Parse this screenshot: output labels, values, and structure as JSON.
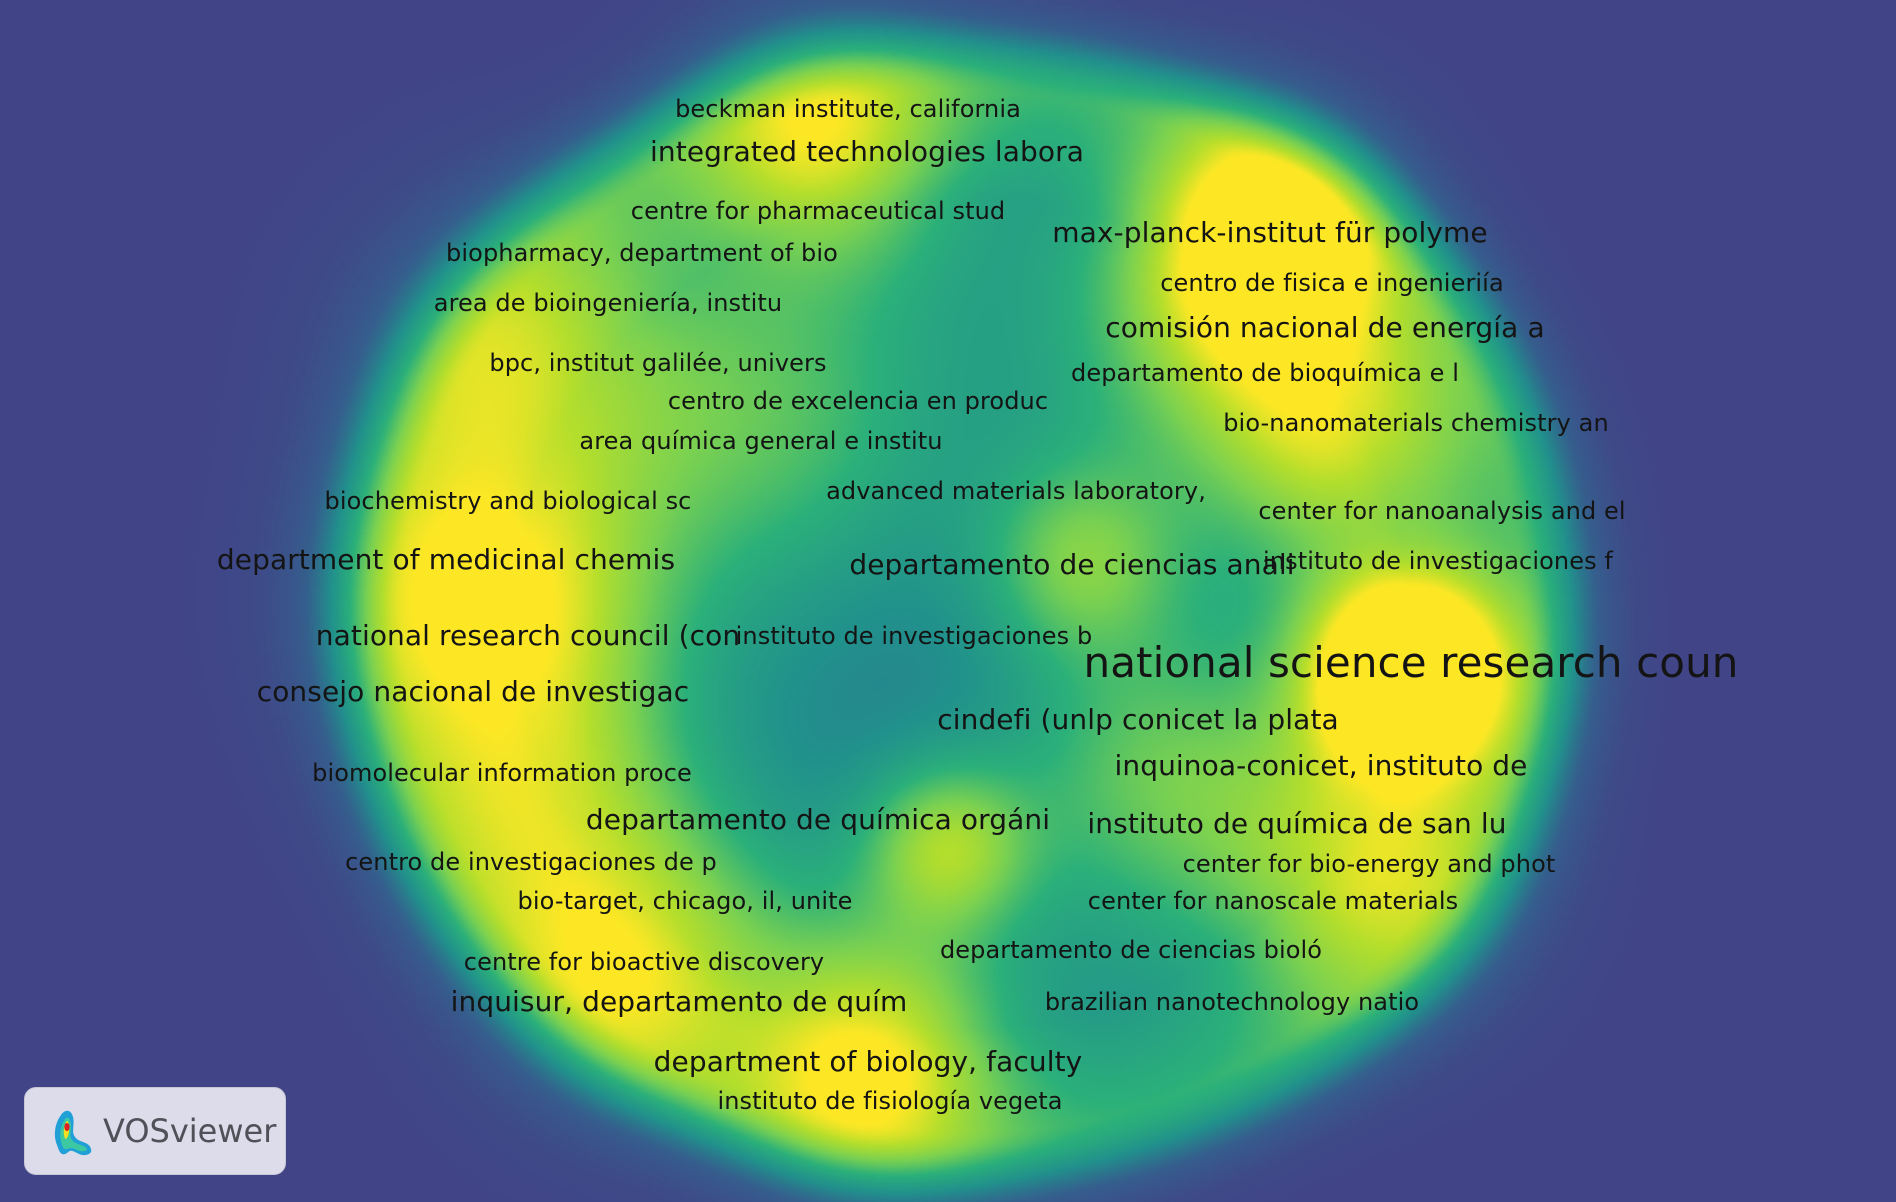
{
  "app": {
    "name": "VOSviewer"
  },
  "colors": {
    "background": "#414487",
    "low": "#21918c",
    "mid": "#7ad151",
    "high": "#fde725"
  },
  "map": {
    "type": "density-visualization",
    "labels": [
      {
        "text": "beckman institute, california",
        "size": 1
      },
      {
        "text": "integrated technologies labora",
        "size": 2
      },
      {
        "text": "centre for pharmaceutical stud",
        "size": 1
      },
      {
        "text": "max-planck-institut für polyme",
        "size": 2
      },
      {
        "text": "biopharmacy, department of bio",
        "size": 1
      },
      {
        "text": "centro de fisica e ingenieriía",
        "size": 1
      },
      {
        "text": "area de bioingeniería, institu",
        "size": 1
      },
      {
        "text": "comisión nacional de energía a",
        "size": 2
      },
      {
        "text": "bpc, institut galilée, univers",
        "size": 1
      },
      {
        "text": "departamento de bioquímica e l",
        "size": 1
      },
      {
        "text": "centro de excelencia en produc",
        "size": 1
      },
      {
        "text": "area química general e institu",
        "size": 1
      },
      {
        "text": "bio-nanomaterials chemistry an",
        "size": 1
      },
      {
        "text": "advanced materials laboratory,",
        "size": 1
      },
      {
        "text": "biochemistry and biological sc",
        "size": 1
      },
      {
        "text": "center for nanoanalysis and el",
        "size": 1
      },
      {
        "text": "department of medicinal chemis",
        "size": 2
      },
      {
        "text": "departamento de ciencias anali",
        "size": 2
      },
      {
        "text": "instituto de investigaciones f",
        "size": 1
      },
      {
        "text": "national research council (con",
        "size": 2
      },
      {
        "text": "instituto de investigaciones b",
        "size": 1
      },
      {
        "text": "national science research coun",
        "size": 3
      },
      {
        "text": "consejo nacional de investigac",
        "size": 2
      },
      {
        "text": "cindefi (unlp conicet la plata",
        "size": 2
      },
      {
        "text": "inquinoa-conicet, instituto de",
        "size": 2
      },
      {
        "text": "biomolecular information proce",
        "size": 1
      },
      {
        "text": "departamento de química orgáni",
        "size": 2
      },
      {
        "text": "instituto de química de san lu",
        "size": 2
      },
      {
        "text": "centro de investigaciones de p",
        "size": 1
      },
      {
        "text": "center for bio-energy and phot",
        "size": 1
      },
      {
        "text": "bio-target, chicago, il, unite",
        "size": 1
      },
      {
        "text": "center for nanoscale materials",
        "size": 1
      },
      {
        "text": "departamento de ciencias bioló",
        "size": 1
      },
      {
        "text": "centre for bioactive discovery",
        "size": 1
      },
      {
        "text": "inquisur, departamento de quím",
        "size": 2
      },
      {
        "text": "brazilian nanotechnology natio",
        "size": 1
      },
      {
        "text": "department of biology, faculty",
        "size": 2
      },
      {
        "text": "instituto de fisiología vegeta",
        "size": 1
      }
    ]
  }
}
